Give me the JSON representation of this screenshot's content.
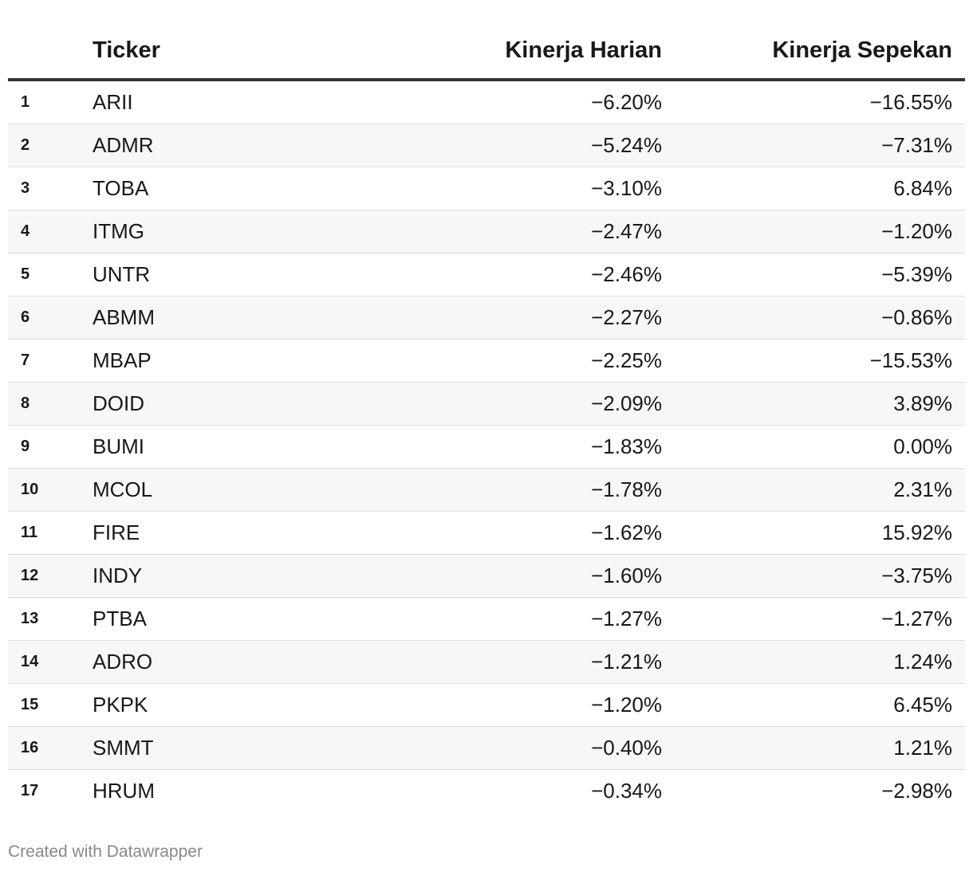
{
  "chart_data": {
    "type": "table",
    "columns": [
      "",
      "Ticker",
      "Kinerja Harian",
      "Kinerja Sepekan"
    ],
    "rows": [
      {
        "rank": "1",
        "ticker": "ARII",
        "daily": "−6.20%",
        "weekly": "−16.55%"
      },
      {
        "rank": "2",
        "ticker": "ADMR",
        "daily": "−5.24%",
        "weekly": "−7.31%"
      },
      {
        "rank": "3",
        "ticker": "TOBA",
        "daily": "−3.10%",
        "weekly": "6.84%"
      },
      {
        "rank": "4",
        "ticker": "ITMG",
        "daily": "−2.47%",
        "weekly": "−1.20%"
      },
      {
        "rank": "5",
        "ticker": "UNTR",
        "daily": "−2.46%",
        "weekly": "−5.39%"
      },
      {
        "rank": "6",
        "ticker": "ABMM",
        "daily": "−2.27%",
        "weekly": "−0.86%"
      },
      {
        "rank": "7",
        "ticker": "MBAP",
        "daily": "−2.25%",
        "weekly": "−15.53%"
      },
      {
        "rank": "8",
        "ticker": "DOID",
        "daily": "−2.09%",
        "weekly": "3.89%"
      },
      {
        "rank": "9",
        "ticker": "BUMI",
        "daily": "−1.83%",
        "weekly": "0.00%"
      },
      {
        "rank": "10",
        "ticker": "MCOL",
        "daily": "−1.78%",
        "weekly": "2.31%"
      },
      {
        "rank": "11",
        "ticker": "FIRE",
        "daily": "−1.62%",
        "weekly": "15.92%"
      },
      {
        "rank": "12",
        "ticker": "INDY",
        "daily": "−1.60%",
        "weekly": "−3.75%"
      },
      {
        "rank": "13",
        "ticker": "PTBA",
        "daily": "−1.27%",
        "weekly": "−1.27%"
      },
      {
        "rank": "14",
        "ticker": "ADRO",
        "daily": "−1.21%",
        "weekly": "1.24%"
      },
      {
        "rank": "15",
        "ticker": "PKPK",
        "daily": "−1.20%",
        "weekly": "6.45%"
      },
      {
        "rank": "16",
        "ticker": "SMMT",
        "daily": "−0.40%",
        "weekly": "1.21%"
      },
      {
        "rank": "17",
        "ticker": "HRUM",
        "daily": "−0.34%",
        "weekly": "−2.98%"
      }
    ]
  },
  "footer": "Created with Datawrapper"
}
